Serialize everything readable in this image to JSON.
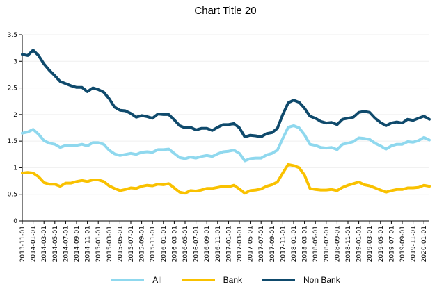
{
  "chart_data": {
    "type": "line",
    "title": "Chart Title 20",
    "xlabel": "",
    "ylabel": "",
    "ylim": [
      0,
      3.5
    ],
    "yticks": [
      "0",
      "0.5",
      "1",
      "1.5",
      "2",
      "2.5",
      "3",
      "3.5"
    ],
    "grid": true,
    "legend_position": "bottom",
    "x_ticks": [
      "2013-11-01",
      "2014-01-01",
      "2014-03-01",
      "2014-05-01",
      "2014-07-01",
      "2014-09-01",
      "2014-11-01",
      "2015-01-01",
      "2015-03-01",
      "2015-05-01",
      "2015-07-01",
      "2015-09-01",
      "2015-11-01",
      "2016-01-01",
      "2016-03-01",
      "2016-05-01",
      "2016-07-01",
      "2016-09-01",
      "2016-11-01",
      "2017-01-01",
      "2017-03-01",
      "2017-05-01",
      "2017-07-01",
      "2017-09-01",
      "2017-11-01",
      "2018-01-01",
      "2018-03-01",
      "2018-05-01",
      "2018-07-01",
      "2018-09-01",
      "2018-11-01",
      "2019-01-01",
      "2019-03-01",
      "2019-05-01",
      "2019-07-01",
      "2019-09-01",
      "2019-11-01",
      "2020-01-01"
    ],
    "start_month": "2013-11",
    "series": [
      {
        "name": "All",
        "color": "#8FD8EE",
        "values": [
          1.65,
          1.67,
          1.72,
          1.63,
          1.51,
          1.46,
          1.44,
          1.38,
          1.42,
          1.41,
          1.42,
          1.44,
          1.41,
          1.47,
          1.47,
          1.44,
          1.33,
          1.26,
          1.23,
          1.25,
          1.27,
          1.25,
          1.29,
          1.3,
          1.29,
          1.34,
          1.34,
          1.35,
          1.27,
          1.19,
          1.17,
          1.2,
          1.18,
          1.21,
          1.23,
          1.21,
          1.26,
          1.3,
          1.31,
          1.33,
          1.27,
          1.13,
          1.17,
          1.18,
          1.18,
          1.24,
          1.27,
          1.33,
          1.55,
          1.76,
          1.79,
          1.75,
          1.62,
          1.44,
          1.42,
          1.38,
          1.37,
          1.38,
          1.34,
          1.44,
          1.46,
          1.49,
          1.56,
          1.55,
          1.53,
          1.46,
          1.41,
          1.35,
          1.41,
          1.44,
          1.44,
          1.49,
          1.48,
          1.51,
          1.57,
          1.52
        ]
      },
      {
        "name": "Bank",
        "color": "#F9C100",
        "values": [
          0.9,
          0.91,
          0.9,
          0.83,
          0.72,
          0.69,
          0.69,
          0.65,
          0.71,
          0.71,
          0.74,
          0.76,
          0.74,
          0.77,
          0.77,
          0.74,
          0.66,
          0.61,
          0.57,
          0.59,
          0.62,
          0.61,
          0.65,
          0.67,
          0.66,
          0.69,
          0.68,
          0.7,
          0.62,
          0.54,
          0.52,
          0.57,
          0.56,
          0.58,
          0.61,
          0.61,
          0.63,
          0.65,
          0.64,
          0.67,
          0.6,
          0.52,
          0.57,
          0.58,
          0.6,
          0.65,
          0.68,
          0.73,
          0.9,
          1.06,
          1.04,
          1.0,
          0.86,
          0.61,
          0.59,
          0.58,
          0.58,
          0.59,
          0.57,
          0.63,
          0.67,
          0.7,
          0.73,
          0.68,
          0.66,
          0.62,
          0.58,
          0.54,
          0.57,
          0.59,
          0.59,
          0.62,
          0.62,
          0.63,
          0.67,
          0.65
        ]
      },
      {
        "name": "Non Bank",
        "color": "#0F4A6C",
        "values": [
          3.13,
          3.11,
          3.21,
          3.11,
          2.95,
          2.83,
          2.73,
          2.62,
          2.58,
          2.54,
          2.51,
          2.51,
          2.43,
          2.5,
          2.47,
          2.42,
          2.3,
          2.14,
          2.08,
          2.07,
          2.02,
          1.95,
          1.98,
          1.96,
          1.93,
          2.01,
          2.0,
          2.0,
          1.9,
          1.79,
          1.75,
          1.76,
          1.71,
          1.74,
          1.74,
          1.7,
          1.76,
          1.81,
          1.81,
          1.83,
          1.75,
          1.58,
          1.61,
          1.6,
          1.58,
          1.64,
          1.66,
          1.74,
          2.0,
          2.22,
          2.27,
          2.23,
          2.12,
          1.97,
          1.93,
          1.87,
          1.84,
          1.85,
          1.81,
          1.91,
          1.93,
          1.95,
          2.04,
          2.06,
          2.04,
          1.93,
          1.85,
          1.79,
          1.84,
          1.86,
          1.84,
          1.91,
          1.89,
          1.93,
          1.97,
          1.91
        ]
      }
    ]
  }
}
